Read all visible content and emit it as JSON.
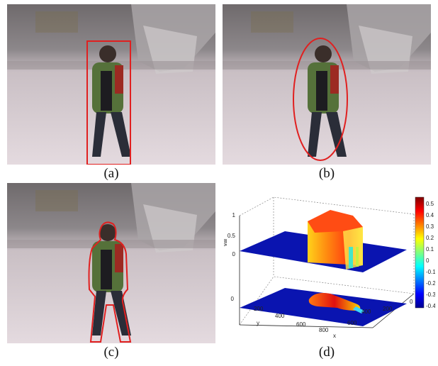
{
  "captions": {
    "a": "(a)",
    "b": "(b)",
    "c": "(c)",
    "d": "(d)"
  },
  "overlay_color": "#e02020",
  "plot": {
    "zlabel": "val",
    "ylabel": "y",
    "xlabel": "x",
    "z_ticks": [
      "1",
      "0.5",
      "0"
    ],
    "y_ticks": [
      "0",
      "200",
      "400",
      "600"
    ],
    "x_ticks": [
      "800",
      "600",
      "400",
      "200",
      "0"
    ],
    "colorbar_ticks": [
      "0.5",
      "0.4",
      "0.3",
      "0.2",
      "0.1",
      "0",
      "-0.1",
      "-0.2",
      "-0.3",
      "-0.4"
    ],
    "colormap": "jet"
  }
}
